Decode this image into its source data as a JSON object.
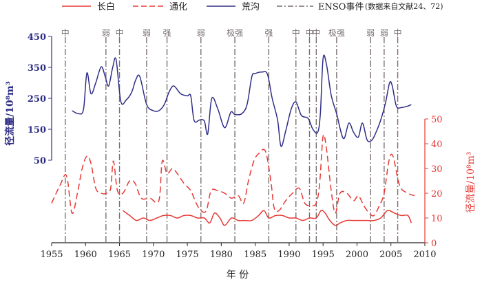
{
  "legend": {
    "changbai": "长白",
    "tonghua": "通化",
    "huanggou": "荒沟",
    "enso": "ENSO事件",
    "enso_note": "(数据来自文献24、72)"
  },
  "axes": {
    "left_label": "径流量/10⁸m³",
    "right_label": "径流量/10⁸m³",
    "x_label": "年 份"
  },
  "colors": {
    "huanggou": "#2e2e86",
    "changbai": "#e53935",
    "tonghua": "#e53935",
    "enso": "#7a6f6f"
  },
  "chart_data": {
    "type": "line",
    "xlim": [
      1955,
      2010
    ],
    "x_ticks": [
      "1955",
      "1960",
      "1965",
      "1970",
      "1975",
      "1980",
      "1985",
      "1990",
      "1995",
      "2000",
      "2005",
      "2010"
    ],
    "y_left": {
      "lim": [
        50,
        450
      ],
      "ticks": [
        "50",
        "150",
        "250",
        "350",
        "450"
      ]
    },
    "y_right": {
      "lim": [
        0,
        50
      ],
      "ticks": [
        "0",
        "10",
        "20",
        "30",
        "40",
        "50"
      ]
    },
    "series": [
      {
        "name": "荒沟",
        "axis": "left",
        "style": "solid",
        "color": "#2e2e86",
        "x": [
          1958,
          1959,
          1959.7,
          1960.2,
          1960.8,
          1961.5,
          1962.3,
          1962.9,
          1963.4,
          1964,
          1964.5,
          1965.2,
          1966,
          1966.8,
          1967.4,
          1968,
          1969,
          1970,
          1970.8,
          1971.6,
          1972.3,
          1973,
          1974,
          1975,
          1975.5,
          1976,
          1976.8,
          1977.5,
          1978,
          1978.6,
          1979.5,
          1980.5,
          1981.4,
          1982,
          1983,
          1983.8,
          1984.5,
          1985,
          1986,
          1986.8,
          1987.5,
          1988.3,
          1988.8,
          1989.5,
          1990.3,
          1991,
          1991.8,
          1992.8,
          1993.5,
          1994.2,
          1994.6,
          1995,
          1995.5,
          1996.2,
          1997,
          1998,
          1998.8,
          1999.5,
          2000.2,
          2000.8,
          2001.5,
          2002.2,
          2002.8,
          2003.5,
          2004.2,
          2004.8,
          2005.2,
          2005.8,
          2006.5,
          2007.5,
          2008
        ],
        "y": [
          210,
          200,
          215,
          332,
          265,
          300,
          352,
          320,
          290,
          350,
          375,
          240,
          245,
          270,
          310,
          320,
          230,
          210,
          210,
          230,
          270,
          290,
          265,
          258,
          258,
          178,
          180,
          177,
          135,
          250,
          215,
          155,
          205,
          198,
          200,
          230,
          320,
          330,
          335,
          328,
          250,
          180,
          95,
          145,
          215,
          238,
          195,
          185,
          150,
          140,
          200,
          378,
          360,
          260,
          200,
          120,
          170,
          140,
          125,
          170,
          115,
          115,
          140,
          180,
          235,
          300,
          290,
          225,
          220,
          225,
          230
        ]
      },
      {
        "name": "通化",
        "axis": "right",
        "style": "dashed",
        "color": "#e53935",
        "x": [
          1955,
          1956.2,
          1957.2,
          1958,
          1958.8,
          1959.5,
          1960.2,
          1960.8,
          1961.5,
          1962.3,
          1963.1,
          1963.7,
          1964.1,
          1964.7,
          1965.5,
          1966.5,
          1967.3,
          1968.2,
          1969.5,
          1970.8,
          1971.3,
          1972,
          1972.8,
          1973.5,
          1974.5,
          1975.5,
          1976.3,
          1977,
          1977.8,
          1978.5,
          1979.5,
          1980.5,
          1981.5,
          1982.5,
          1983.3,
          1984,
          1984.8,
          1985.5,
          1986.5,
          1987.3,
          1987.8,
          1988.5,
          1989.5,
          1990.5,
          1991.5,
          1992.3,
          1993.2,
          1994,
          1994.5,
          1995,
          1995.5,
          1996.2,
          1996.8,
          1997.5,
          1998.5,
          1999.5,
          2000.2,
          2001,
          2001.8,
          2002.5,
          2003.3,
          2004,
          2004.7,
          2005.3,
          2006.3,
          2007.5,
          2008.5
        ],
        "y": [
          16,
          23,
          27,
          12,
          20,
          30,
          35,
          32,
          22,
          20,
          20,
          22,
          33,
          21,
          20,
          25,
          24,
          18,
          18,
          17,
          33,
          28,
          30,
          28,
          24,
          21,
          16,
          13,
          13,
          21,
          21,
          20,
          18,
          19,
          16,
          25,
          33,
          36,
          37,
          25,
          14,
          13,
          17,
          20,
          22,
          16,
          15,
          16,
          24,
          43,
          38,
          21,
          12,
          20,
          20,
          17,
          19,
          15,
          12,
          11,
          15,
          20,
          33,
          35,
          23,
          20,
          19
        ]
      },
      {
        "name": "长白",
        "axis": "right",
        "style": "solid",
        "color": "#e53935",
        "x": [
          1965.5,
          1966.5,
          1967.5,
          1968.5,
          1969.5,
          1970.5,
          1971.5,
          1972.5,
          1973.5,
          1974.5,
          1975.5,
          1976.5,
          1977.5,
          1978.3,
          1979,
          1979.8,
          1980.5,
          1981.5,
          1982.5,
          1983.5,
          1984.5,
          1985.5,
          1986.3,
          1987,
          1988,
          1989,
          1990,
          1991,
          1992,
          1993,
          1994,
          1994.7,
          1995.3,
          1996,
          1996.8,
          1997.5,
          1998.5,
          1999.5,
          2000.5,
          2001.5,
          2002.5,
          2003.5,
          2004.5,
          2005.5,
          2006.5,
          2007.5,
          2008
        ],
        "y": [
          13,
          11,
          9,
          10,
          9,
          10,
          11,
          11,
          10,
          11,
          11,
          10,
          10,
          8,
          12,
          10,
          7,
          10,
          9,
          9,
          9,
          11,
          13,
          10,
          11,
          11,
          10,
          10,
          9,
          10,
          10,
          13,
          12,
          9,
          7,
          8,
          9,
          9,
          9,
          9,
          9,
          10,
          13,
          12,
          11,
          11,
          8
        ]
      }
    ],
    "enso_events": [
      {
        "year": 1957,
        "label": "中"
      },
      {
        "year": 1963,
        "label": "弱"
      },
      {
        "year": 1965,
        "label": "中"
      },
      {
        "year": 1969,
        "label": "弱"
      },
      {
        "year": 1972,
        "label": "强"
      },
      {
        "year": 1977,
        "label": "弱"
      },
      {
        "year": 1982,
        "label": "极强"
      },
      {
        "year": 1987,
        "label": "强"
      },
      {
        "year": 1991,
        "label": "中"
      },
      {
        "year": 1993,
        "label": "中"
      },
      {
        "year": 1994,
        "label": "中"
      },
      {
        "year": 1997,
        "label": "极强"
      },
      {
        "year": 2002,
        "label": "弱"
      },
      {
        "year": 2004,
        "label": "弱"
      },
      {
        "year": 2006,
        "label": "中"
      }
    ]
  }
}
